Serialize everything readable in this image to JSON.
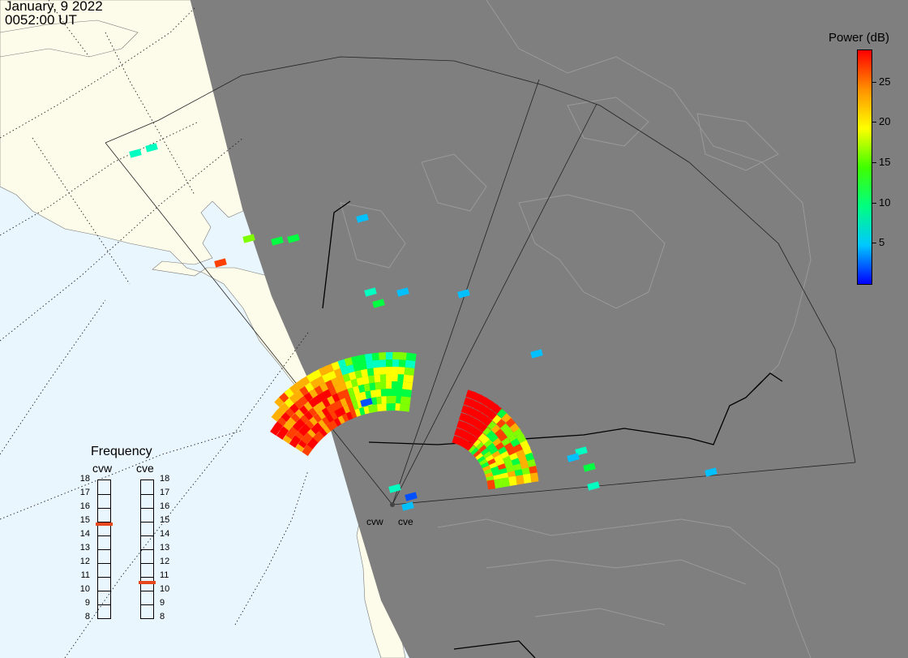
{
  "header": {
    "date": "January, 9 2022",
    "time": "0052:00 UT"
  },
  "colorbar": {
    "title": "Power (dB)",
    "ticks": [
      "25",
      "20",
      "15",
      "10",
      "5"
    ],
    "range": [
      0,
      29
    ],
    "tick_values": [
      25,
      20,
      15,
      10,
      5
    ],
    "colors": [
      "#0000ff",
      "#00c8ff",
      "#00ff80",
      "#40ff00",
      "#ffff00",
      "#ff9000",
      "#ff0000"
    ]
  },
  "radars": {
    "west": "cvw",
    "east": "cve"
  },
  "frequency": {
    "title": "Frequency",
    "col_west": "cvw",
    "col_east": "cve",
    "scale": [
      "18",
      "17",
      "16",
      "15",
      "14",
      "13",
      "12",
      "11",
      "10",
      "9",
      "8"
    ],
    "scale_min": 8,
    "scale_max": 18,
    "cvw_mhz": 14.8,
    "cve_mhz": 10.6,
    "marker_color": "#e8461c"
  },
  "map": {
    "ocean_color": "#eaf6fd",
    "land_day_color": "#fdfbe9",
    "night_color": "#7f7f7f",
    "border_color": "#000000",
    "night_coast_color": "#9a9a9a"
  }
}
